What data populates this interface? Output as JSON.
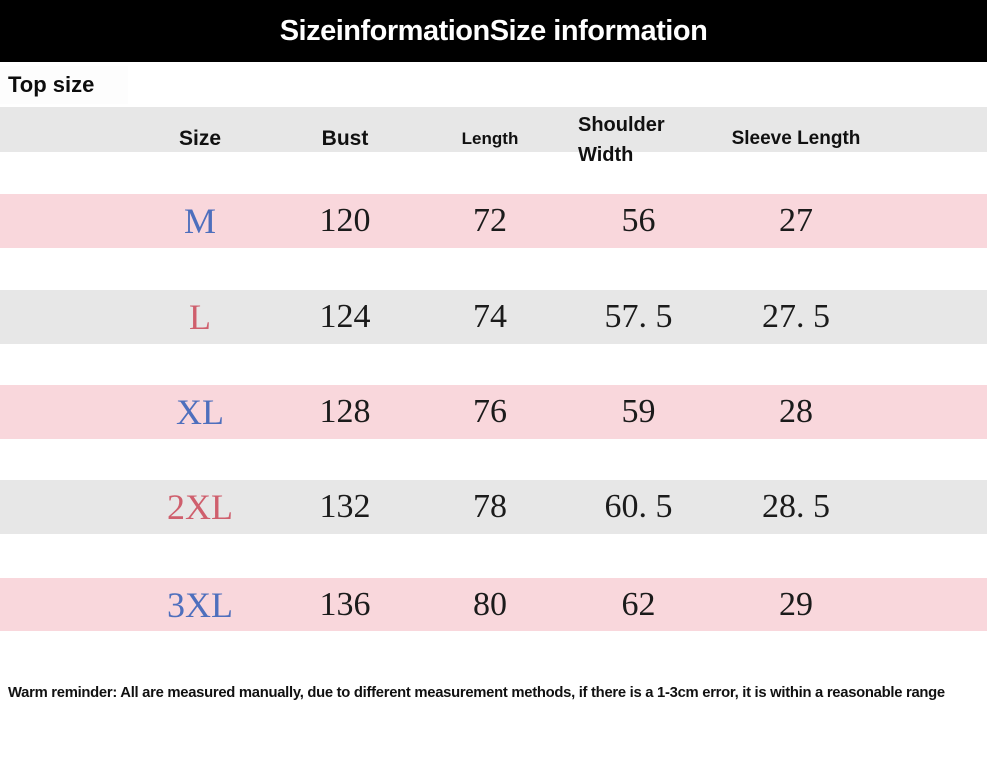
{
  "header": {
    "title": "SizeinformationSize information"
  },
  "section": {
    "label": "Top size"
  },
  "table": {
    "columns": [
      "Size",
      "Bust",
      "Length",
      "Shoulder Width",
      "Sleeve Length"
    ],
    "rows": [
      {
        "size": "M",
        "bust": "120",
        "length": "72",
        "shoulder_width": "56",
        "sleeve_length": "27"
      },
      {
        "size": "L",
        "bust": "124",
        "length": "74",
        "shoulder_width": "57. 5",
        "sleeve_length": "27. 5"
      },
      {
        "size": "XL",
        "bust": "128",
        "length": "76",
        "shoulder_width": "59",
        "sleeve_length": "28"
      },
      {
        "size": "2XL",
        "bust": "132",
        "length": "78",
        "shoulder_width": "60. 5",
        "sleeve_length": "28. 5"
      },
      {
        "size": "3XL",
        "bust": "136",
        "length": "80",
        "shoulder_width": "62",
        "sleeve_length": "29"
      }
    ]
  },
  "footer": {
    "note": "Warm reminder: All are measured manually, due to different measurement methods, if there is a 1-3cm error, it is within a reasonable range"
  },
  "colors": {
    "header_bar_bg": "#000000",
    "title_text": "#ffffff",
    "table_header_bg": "#e7e7e7",
    "row_pink_bg": "#f9d7dc",
    "row_gray_bg": "#e7e7e7",
    "size_label_blue": "#4e6fbd",
    "size_label_red": "#cf5f6d",
    "body_text": "#1b1b1b"
  }
}
